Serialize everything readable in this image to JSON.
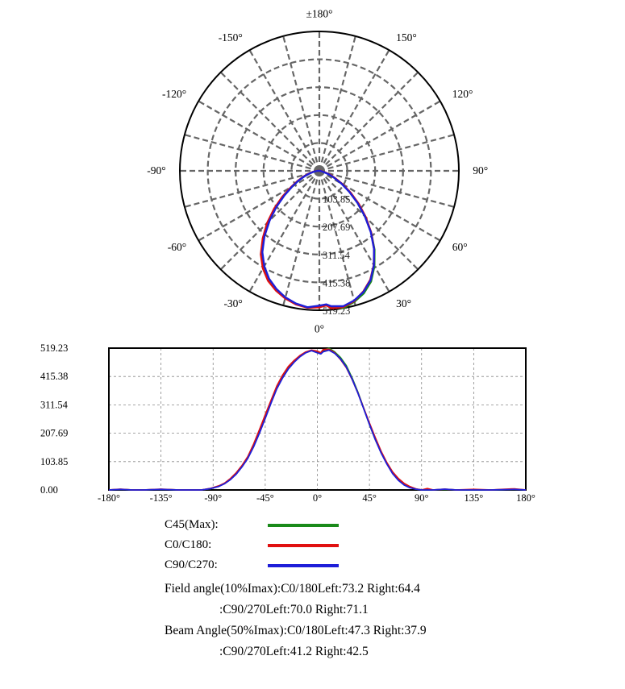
{
  "chart_data": [
    {
      "type": "polar",
      "angle_labels": [
        {
          "angle": 180,
          "text": "±180°"
        },
        {
          "angle": 150,
          "text": "150°"
        },
        {
          "angle": 120,
          "text": "120°"
        },
        {
          "angle": 90,
          "text": "90°"
        },
        {
          "angle": 60,
          "text": "60°"
        },
        {
          "angle": 30,
          "text": "30°"
        },
        {
          "angle": 0,
          "text": "0°"
        },
        {
          "angle": -30,
          "text": "-30°"
        },
        {
          "angle": -60,
          "text": "-60°"
        },
        {
          "angle": -90,
          "text": "-90°"
        },
        {
          "angle": -120,
          "text": "-120°"
        },
        {
          "angle": -150,
          "text": "-150°"
        }
      ],
      "radial_ticks": [
        103.85,
        207.69,
        311.54,
        415.38,
        519.23
      ],
      "radial_tick_labels": [
        "103.85",
        "207.69",
        "311.54",
        "415.38",
        "519.23"
      ],
      "r_max": 519.23,
      "grid": true
    },
    {
      "type": "line",
      "xlim": [
        -180,
        180
      ],
      "ylim": [
        0,
        519.23
      ],
      "x_ticks": [
        -180,
        -135,
        -90,
        -45,
        0,
        45,
        90,
        135,
        180
      ],
      "x_tick_labels": [
        "-180°",
        "-135°",
        "-90°",
        "-45°",
        "0°",
        "45°",
        "90°",
        "135°",
        "180°"
      ],
      "y_ticks": [
        0,
        103.85,
        207.69,
        311.54,
        415.38,
        519.23
      ],
      "y_tick_labels": [
        "0.00",
        "103.85",
        "207.69",
        "311.54",
        "415.38",
        "519.23"
      ],
      "grid": true,
      "series": [
        {
          "name": "C45(Max):",
          "color": "#1a8a1a",
          "points": [
            [
              -180,
              0
            ],
            [
              -170,
              2
            ],
            [
              -160,
              0
            ],
            [
              -150,
              0
            ],
            [
              -135,
              2
            ],
            [
              -120,
              0
            ],
            [
              -100,
              0
            ],
            [
              -92,
              5
            ],
            [
              -85,
              14
            ],
            [
              -80,
              24
            ],
            [
              -75,
              40
            ],
            [
              -70,
              60
            ],
            [
              -65,
              86
            ],
            [
              -60,
              118
            ],
            [
              -55,
              160
            ],
            [
              -50,
              212
            ],
            [
              -45,
              265
            ],
            [
              -40,
              320
            ],
            [
              -35,
              372
            ],
            [
              -30,
              412
            ],
            [
              -25,
              445
            ],
            [
              -20,
              470
            ],
            [
              -15,
              490
            ],
            [
              -10,
              503
            ],
            [
              -5,
              511
            ],
            [
              0,
              505
            ],
            [
              3,
              500
            ],
            [
              5,
              510
            ],
            [
              10,
              519
            ],
            [
              15,
              505
            ],
            [
              20,
              485
            ],
            [
              25,
              455
            ],
            [
              30,
              410
            ],
            [
              35,
              358
            ],
            [
              40,
              300
            ],
            [
              45,
              240
            ],
            [
              50,
              185
            ],
            [
              55,
              138
            ],
            [
              60,
              98
            ],
            [
              65,
              62
            ],
            [
              70,
              38
            ],
            [
              75,
              20
            ],
            [
              80,
              9
            ],
            [
              85,
              3
            ],
            [
              90,
              0
            ],
            [
              100,
              0
            ],
            [
              110,
              2
            ],
            [
              120,
              0
            ],
            [
              135,
              0
            ],
            [
              150,
              0
            ],
            [
              160,
              1
            ],
            [
              170,
              2
            ],
            [
              180,
              0
            ]
          ]
        },
        {
          "name": "C0/C180:",
          "color": "#e01010",
          "points": [
            [
              -180,
              0
            ],
            [
              -170,
              3
            ],
            [
              -160,
              0
            ],
            [
              -150,
              0
            ],
            [
              -135,
              3
            ],
            [
              -120,
              0
            ],
            [
              -100,
              0
            ],
            [
              -92,
              6
            ],
            [
              -85,
              15
            ],
            [
              -80,
              25
            ],
            [
              -75,
              42
            ],
            [
              -70,
              63
            ],
            [
              -65,
              90
            ],
            [
              -60,
              122
            ],
            [
              -55,
              168
            ],
            [
              -50,
              220
            ],
            [
              -45,
              275
            ],
            [
              -40,
              328
            ],
            [
              -35,
              380
            ],
            [
              -30,
              420
            ],
            [
              -25,
              452
            ],
            [
              -20,
              474
            ],
            [
              -15,
              492
            ],
            [
              -10,
              505
            ],
            [
              -5,
              512
            ],
            [
              0,
              508
            ],
            [
              3,
              502
            ],
            [
              5,
              514
            ],
            [
              10,
              515
            ],
            [
              15,
              502
            ],
            [
              20,
              478
            ],
            [
              25,
              448
            ],
            [
              30,
              405
            ],
            [
              35,
              355
            ],
            [
              40,
              300
            ],
            [
              45,
              245
            ],
            [
              50,
              192
            ],
            [
              55,
              142
            ],
            [
              60,
              100
            ],
            [
              65,
              66
            ],
            [
              70,
              42
            ],
            [
              75,
              24
            ],
            [
              80,
              12
            ],
            [
              85,
              4
            ],
            [
              90,
              0
            ],
            [
              95,
              5
            ],
            [
              100,
              0
            ],
            [
              110,
              3
            ],
            [
              120,
              0
            ],
            [
              135,
              2
            ],
            [
              150,
              0
            ],
            [
              160,
              2
            ],
            [
              170,
              4
            ],
            [
              180,
              0
            ]
          ]
        },
        {
          "name": "C90/C270:",
          "color": "#1e1ed8",
          "points": [
            [
              -180,
              0
            ],
            [
              -170,
              2
            ],
            [
              -160,
              0
            ],
            [
              -150,
              0
            ],
            [
              -135,
              2
            ],
            [
              -120,
              0
            ],
            [
              -100,
              0
            ],
            [
              -92,
              5
            ],
            [
              -85,
              13
            ],
            [
              -80,
              23
            ],
            [
              -75,
              38
            ],
            [
              -70,
              58
            ],
            [
              -65,
              85
            ],
            [
              -60,
              116
            ],
            [
              -55,
              158
            ],
            [
              -50,
              208
            ],
            [
              -45,
              262
            ],
            [
              -40,
              318
            ],
            [
              -35,
              370
            ],
            [
              -30,
              410
            ],
            [
              -25,
              443
            ],
            [
              -20,
              468
            ],
            [
              -15,
              488
            ],
            [
              -10,
              502
            ],
            [
              -5,
              510
            ],
            [
              0,
              502
            ],
            [
              3,
              498
            ],
            [
              5,
              506
            ],
            [
              10,
              512
            ],
            [
              15,
              500
            ],
            [
              20,
              480
            ],
            [
              25,
              450
            ],
            [
              30,
              406
            ],
            [
              35,
              355
            ],
            [
              40,
              298
            ],
            [
              45,
              240
            ],
            [
              50,
              185
            ],
            [
              55,
              136
            ],
            [
              60,
              95
            ],
            [
              65,
              60
            ],
            [
              70,
              35
            ],
            [
              75,
              18
            ],
            [
              80,
              8
            ],
            [
              85,
              3
            ],
            [
              90,
              0
            ],
            [
              100,
              0
            ],
            [
              110,
              3
            ],
            [
              120,
              0
            ],
            [
              135,
              0
            ],
            [
              150,
              0
            ],
            [
              160,
              1
            ],
            [
              170,
              2
            ],
            [
              180,
              0
            ]
          ]
        }
      ]
    }
  ],
  "legend": [
    {
      "label": "C45(Max):",
      "color": "#1a8a1a"
    },
    {
      "label": "C0/C180:",
      "color": "#e01010"
    },
    {
      "label": "C90/C270:",
      "color": "#1e1ed8"
    }
  ],
  "info": {
    "line1": "Field angle(10%Imax):C0/180Left:73.2 Right:64.4",
    "line2": ":C90/270Left:70.0 Right:71.1",
    "line3": "Beam Angle(50%Imax):C0/180Left:47.3 Right:37.9",
    "line4": ":C90/270Left:41.2 Right:42.5"
  }
}
